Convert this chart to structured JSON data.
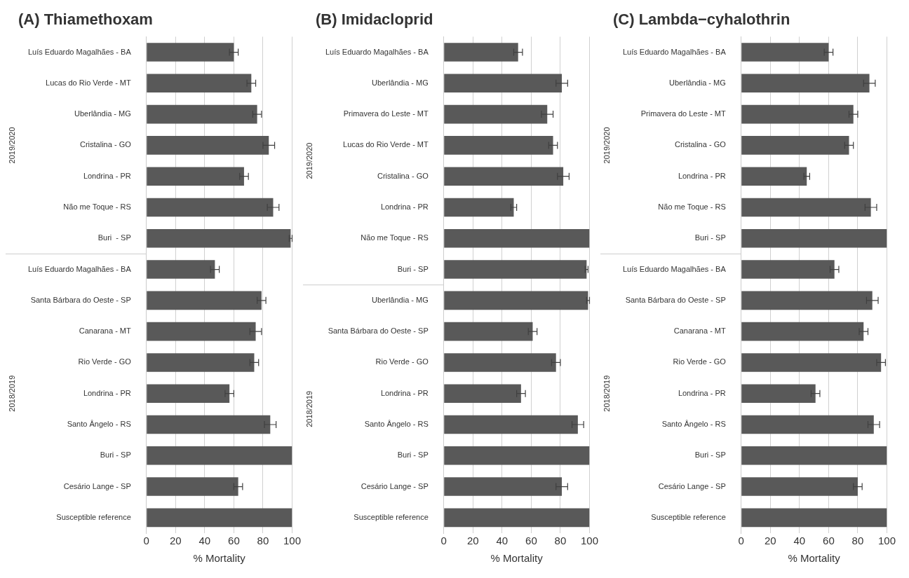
{
  "chart_data": [
    {
      "type": "bar",
      "orientation": "horizontal",
      "title": "(A) Thiamethoxam",
      "xlabel": "% Mortality",
      "categories": [
        "Luís Eduardo Magalhães - BA",
        "Lucas do Rio Verde - MT",
        "Uberlândia - MG",
        "Cristalina - GO",
        "Londrina - PR",
        "Não me Toque - RS",
        "Buri  - SP",
        "Luís Eduardo Magalhães - BA",
        "Santa Bárbara do Oeste - SP",
        "Canarana - MT",
        "Rio Verde - GO",
        "Londrina - PR",
        "Santo Ângelo - RS",
        "Buri - SP",
        "Cesário Lange - SP",
        "Susceptible reference"
      ],
      "values": [
        60,
        72,
        76,
        84,
        67,
        87,
        99,
        47,
        79,
        75,
        74,
        57,
        85,
        100,
        63,
        100
      ],
      "errors": [
        3,
        3,
        3,
        4,
        3,
        4,
        1,
        3,
        3,
        4,
        3,
        3,
        4,
        null,
        3,
        null
      ],
      "color": "#595959",
      "xlim": [
        0,
        100
      ],
      "xticks": [
        0,
        20,
        40,
        60,
        80,
        100
      ],
      "grid": "x",
      "annotations": [
        "2019/2020",
        "2018/2019"
      ]
    },
    {
      "type": "bar",
      "orientation": "horizontal",
      "title": "(B) Imidacloprid",
      "xlabel": "% Mortality",
      "categories": [
        "Luís Eduardo Magalhães - BA",
        "Uberlândia - MG",
        "Primavera do Leste - MT",
        "Lucas do Rio Verde - MT",
        "Cristalina - GO",
        "Londrina - PR",
        "Não me Toque - RS",
        "Buri - SP",
        "Uberlândia - MG",
        "Santa Bárbara do Oeste - SP",
        "Rio Verde - GO",
        "Londrina - PR",
        "Santo Ângelo - RS",
        "Buri - SP",
        "Cesário Lange - SP",
        "Susceptible reference"
      ],
      "values": [
        51,
        81,
        71,
        75,
        82,
        48,
        100,
        98,
        99,
        61,
        77,
        53,
        92,
        100,
        81,
        100
      ],
      "errors": [
        3,
        4,
        4,
        3,
        4,
        2,
        null,
        1,
        1,
        3,
        3,
        3,
        4,
        null,
        4,
        null
      ],
      "color": "#595959",
      "xlim": [
        0,
        100
      ],
      "xticks": [
        0,
        20,
        40,
        60,
        80,
        100
      ],
      "grid": "x",
      "annotations": [
        "2019/2020",
        "2018/2019"
      ]
    },
    {
      "type": "bar",
      "orientation": "horizontal",
      "title": "(C) Lambda−cyhalothrin",
      "xlabel": "% Mortality",
      "categories": [
        "Luís Eduardo Magalhães - BA",
        "Uberlândia - MG",
        "Primavera do Leste - MT",
        "Cristalina - GO",
        "Londrina - PR",
        "Não me Toque - RS",
        "Buri - SP",
        "Luís Eduardo Magalhães - BA",
        "Santa Bárbara do Oeste - SP",
        "Canarana - MT",
        "Rio Verde - GO",
        "Londrina - PR",
        "Santo Ângelo - RS",
        "Buri - SP",
        "Cesário Lange - SP",
        "Susceptible reference"
      ],
      "values": [
        60,
        88,
        77,
        74,
        45,
        89,
        100,
        64,
        90,
        84,
        96,
        51,
        91,
        100,
        80,
        100
      ],
      "errors": [
        3,
        4,
        3,
        3,
        2,
        4,
        null,
        3,
        4,
        3,
        3,
        3,
        4,
        null,
        3,
        null
      ],
      "color": "#595959",
      "xlim": [
        0,
        100
      ],
      "xticks": [
        0,
        20,
        40,
        60,
        80,
        100
      ],
      "grid": "x",
      "annotations": [
        "2019/2020",
        "2018/2019"
      ]
    }
  ]
}
